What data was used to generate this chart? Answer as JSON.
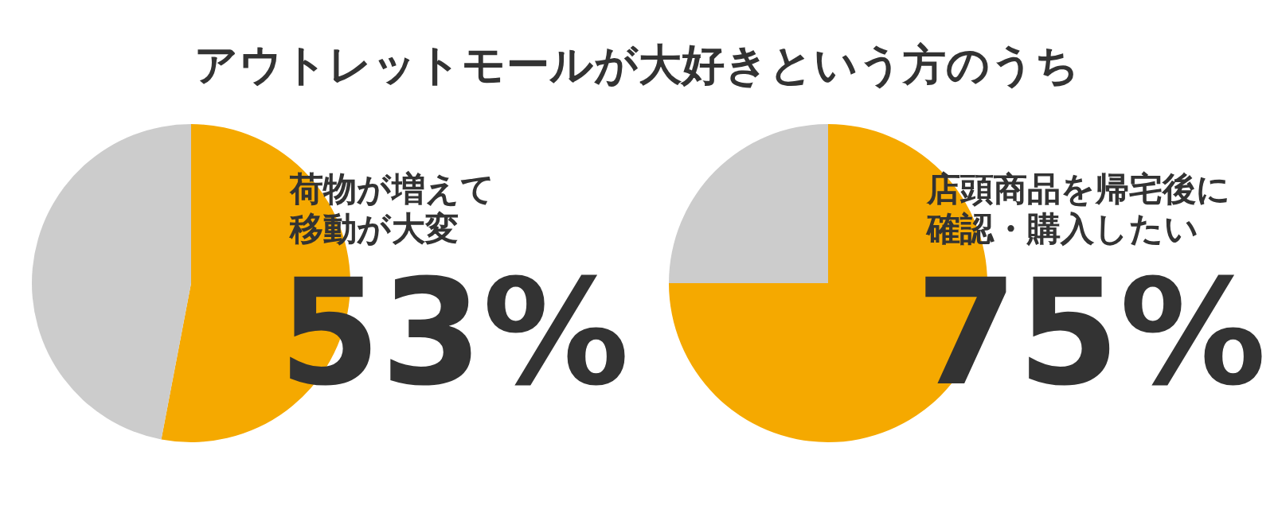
{
  "chart_data": [
    {
      "type": "other",
      "title": "アウトレットモールが大好きという方のうち"
    },
    {
      "type": "pie",
      "title": "荷物が増えて移動が大変",
      "categories": [
        null,
        null
      ],
      "values": [
        53,
        47
      ],
      "colors": [
        "#f5a900",
        "#cccccc"
      ],
      "value_labels": [
        "53%",
        null
      ]
    },
    {
      "type": "pie",
      "title": "店頭商品を帰宅後に確認・購入したい",
      "categories": [
        null,
        null
      ],
      "values": [
        75,
        25
      ],
      "colors": [
        "#f5a900",
        "#cccccc"
      ],
      "value_labels": [
        "75%",
        null
      ]
    }
  ]
}
